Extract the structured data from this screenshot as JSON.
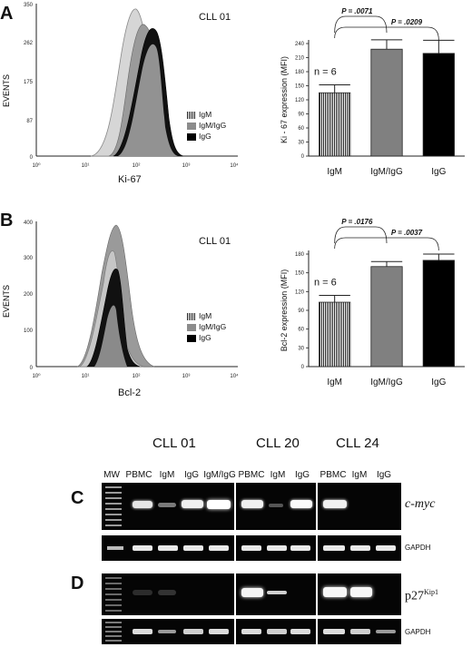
{
  "panels": {
    "A": {
      "letter": "A",
      "histogram": {
        "sample": "CLL 01",
        "y_axis_label": "EVENTS",
        "y_ticks": [
          "350",
          "262",
          "175",
          "87",
          "0"
        ],
        "x_ticks": [
          "10⁰",
          "10¹",
          "10²",
          "10³",
          "10⁴"
        ],
        "x_label": "Ki-67",
        "legend": [
          {
            "label": "IgM",
            "style": "striped"
          },
          {
            "label": "IgM/IgG",
            "style": "gray"
          },
          {
            "label": "IgG",
            "style": "black"
          }
        ]
      }
    },
    "B": {
      "letter": "B",
      "histogram": {
        "sample": "CLL 01",
        "y_axis_label": "EVENTS",
        "y_ticks": [
          "400",
          "300",
          "200",
          "100",
          "0"
        ],
        "x_ticks": [
          "10⁰",
          "10¹",
          "10²",
          "10³",
          "10⁴"
        ],
        "x_label": "Bcl-2",
        "legend": [
          {
            "label": "IgM",
            "style": "striped"
          },
          {
            "label": "IgM/IgG",
            "style": "gray"
          },
          {
            "label": "IgG",
            "style": "black"
          }
        ]
      }
    },
    "C": {
      "letter": "C",
      "gene": "c-myc",
      "control": "GAPDH"
    },
    "D": {
      "letter": "D",
      "gene_base": "p27",
      "gene_sup": "Kip1",
      "control": "GAPDH"
    }
  },
  "chart_data": [
    {
      "type": "bar",
      "ylabel": "Ki - 67 expression (MFI)",
      "categories": [
        "IgM",
        "IgM/IgG",
        "IgG"
      ],
      "values": [
        135,
        228,
        219
      ],
      "errors": [
        17,
        20,
        28
      ],
      "colors": [
        "striped",
        "#808080",
        "#000000"
      ],
      "ylim": [
        0,
        240
      ],
      "yticks": [
        "0",
        "30",
        "60",
        "90",
        "120",
        "150",
        "180",
        "210",
        "240"
      ],
      "annotation_n": "n = 6",
      "significance": [
        {
          "from": "IgM",
          "to": "IgM/IgG",
          "label": "P = .0071"
        },
        {
          "from": "IgM",
          "to": "IgG",
          "label": "P = .0209"
        }
      ]
    },
    {
      "type": "bar",
      "ylabel": "Bcl-2 expression (MFI)",
      "categories": [
        "IgM",
        "IgM/IgG",
        "IgG"
      ],
      "values": [
        103,
        160,
        170
      ],
      "errors": [
        11,
        8,
        10
      ],
      "colors": [
        "striped",
        "#808080",
        "#000000"
      ],
      "ylim": [
        0,
        180
      ],
      "yticks": [
        "0",
        "30",
        "60",
        "90",
        "120",
        "150",
        "180"
      ],
      "annotation_n": "n = 6",
      "significance": [
        {
          "from": "IgM",
          "to": "IgM/IgG",
          "label": "P = .0176"
        },
        {
          "from": "IgM",
          "to": "IgG",
          "label": "P = .0037"
        }
      ]
    }
  ],
  "gel": {
    "groups": [
      "CLL 01",
      "CLL 20",
      "CLL 24"
    ],
    "lanes": {
      "g1": [
        "MW",
        "PBMC",
        "IgM",
        "IgG",
        "IgM/IgG"
      ],
      "g2": [
        "PBMC",
        "IgM",
        "IgG"
      ],
      "g3": [
        "PBMC",
        "IgM",
        "IgG"
      ]
    }
  }
}
